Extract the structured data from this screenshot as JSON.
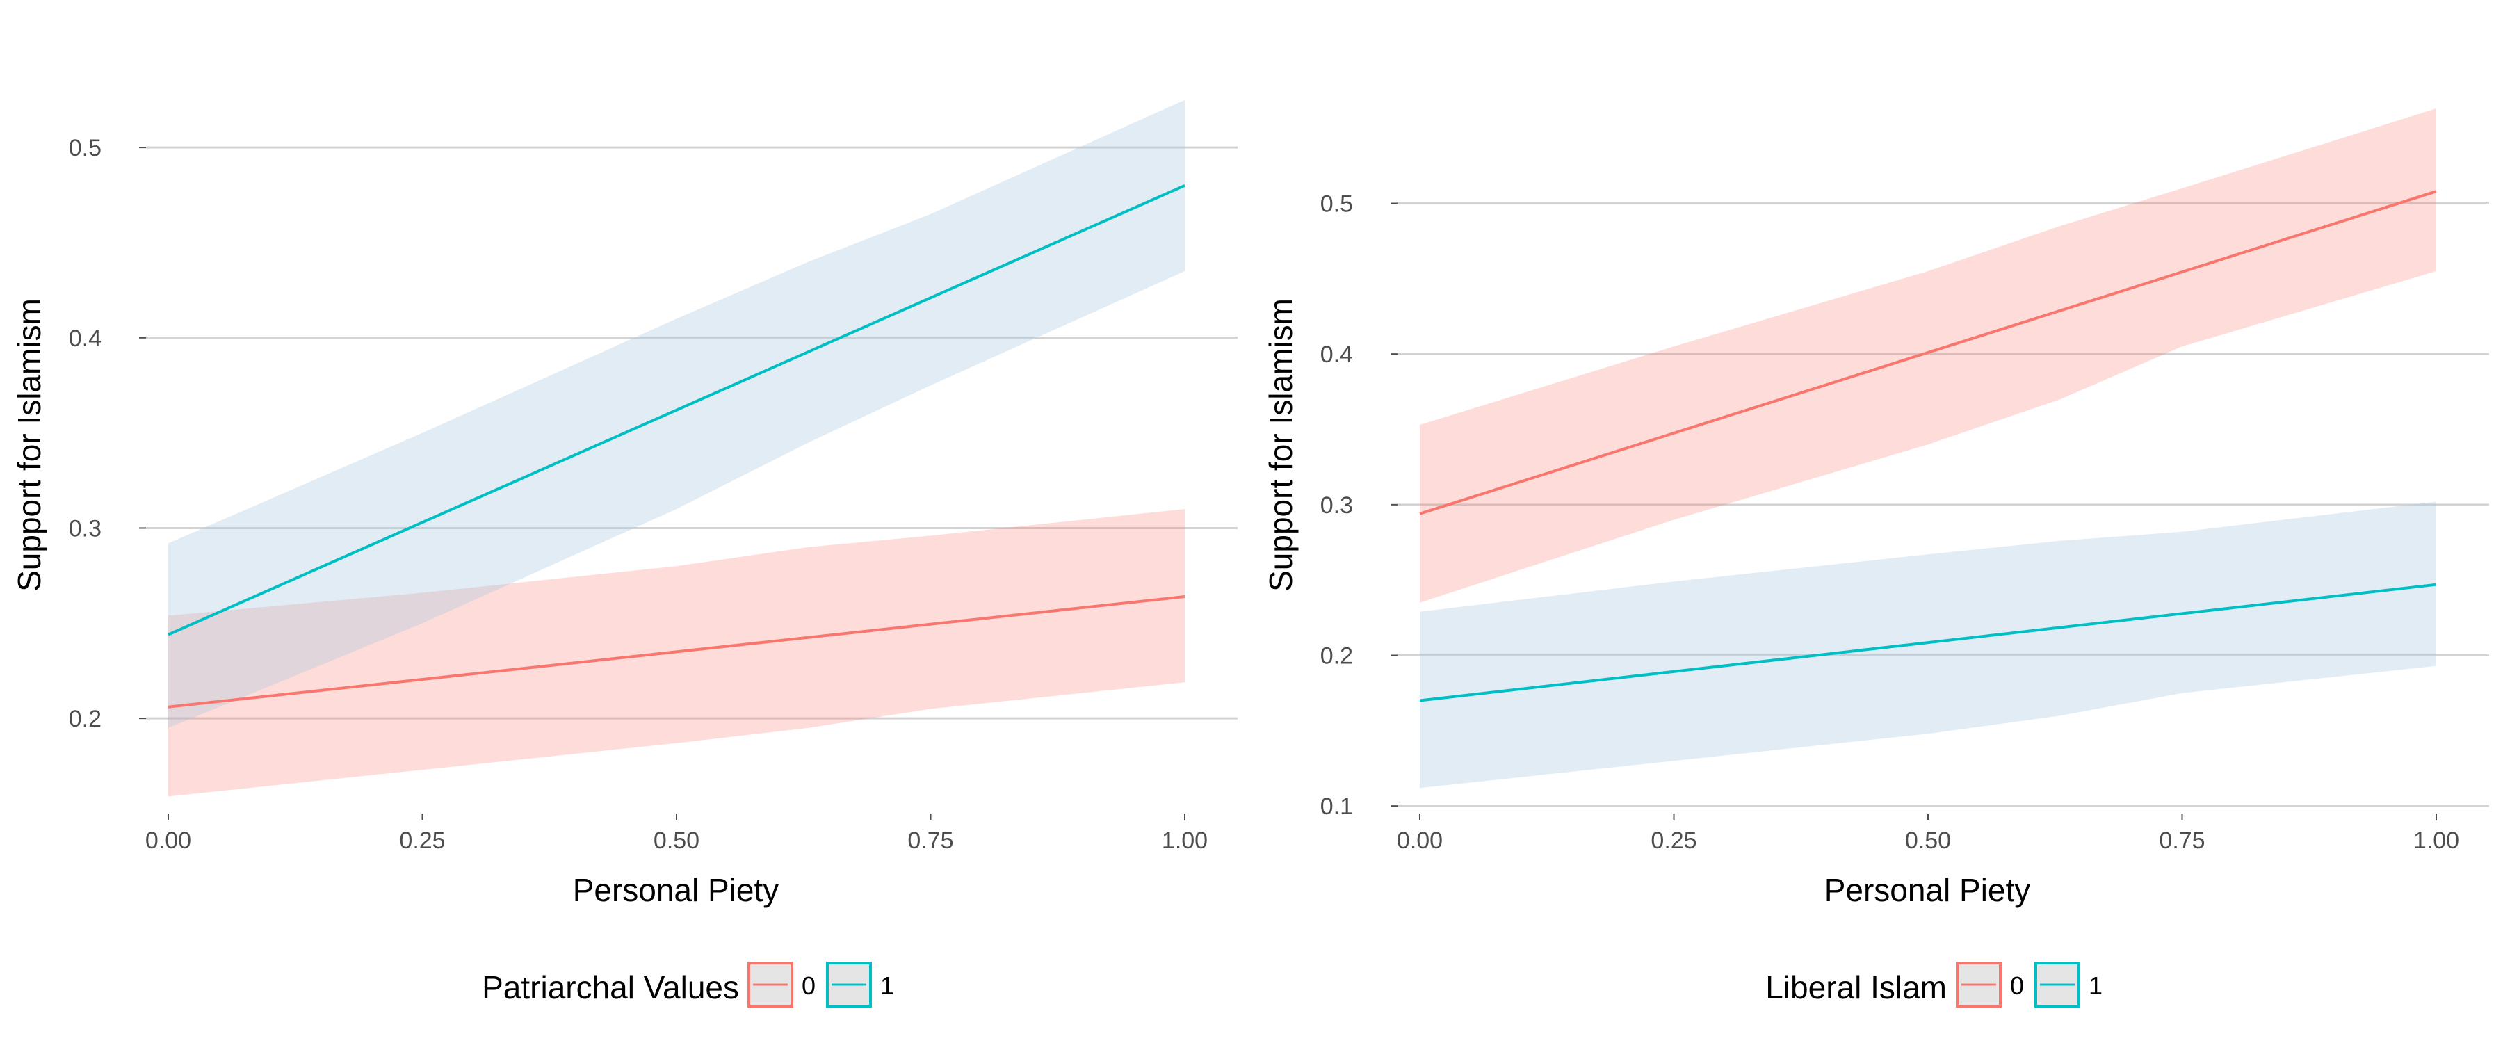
{
  "chart_data": [
    {
      "type": "line",
      "xlabel": "Personal Piety",
      "ylabel": "Support for Islamism",
      "xlim": [
        0,
        1
      ],
      "ylim": [
        0.15,
        0.53
      ],
      "xticks": [
        0,
        0.25,
        0.5,
        0.75,
        1
      ],
      "xtick_labels": [
        "0.00",
        "0.25",
        "0.50",
        "0.75",
        "1.00"
      ],
      "yticks": [
        0.2,
        0.3,
        0.4,
        0.5
      ],
      "ytick_labels": [
        "0.2",
        "0.3",
        "0.4",
        "0.5"
      ],
      "grid": "horizontal",
      "legend": {
        "title": "Patriarchal Values",
        "position": "bottom",
        "entries": [
          "0",
          "1"
        ]
      },
      "series": [
        {
          "name": "0",
          "color": "#F8766D",
          "x": [
            0,
            1
          ],
          "y": [
            0.206,
            0.264
          ],
          "band_x": [
            0,
            0.25,
            0.5,
            0.63,
            0.75,
            1
          ],
          "band_lower": [
            0.159,
            0.173,
            0.187,
            0.195,
            0.205,
            0.219
          ],
          "band_upper": [
            0.254,
            0.266,
            0.28,
            0.29,
            0.296,
            0.31
          ]
        },
        {
          "name": "1",
          "color": "#00BFC4",
          "x": [
            0,
            1
          ],
          "y": [
            0.244,
            0.48
          ],
          "band_x": [
            0,
            0.25,
            0.5,
            0.63,
            0.75,
            1
          ],
          "band_lower": [
            0.195,
            0.25,
            0.31,
            0.345,
            0.375,
            0.435
          ],
          "band_upper": [
            0.292,
            0.35,
            0.41,
            0.44,
            0.465,
            0.525
          ]
        }
      ]
    },
    {
      "type": "line",
      "xlabel": "Personal Piety",
      "ylabel": "Support for Islamism",
      "xlim": [
        0,
        1
      ],
      "ylim": [
        0.095,
        0.575
      ],
      "xticks": [
        0,
        0.25,
        0.5,
        0.75,
        1
      ],
      "xtick_labels": [
        "0.00",
        "0.25",
        "0.50",
        "0.75",
        "1.00"
      ],
      "yticks": [
        0.1,
        0.2,
        0.3,
        0.4,
        0.5
      ],
      "ytick_labels": [
        "0.1",
        "0.2",
        "0.3",
        "0.4",
        "0.5"
      ],
      "grid": "horizontal",
      "legend": {
        "title": "Liberal Islam",
        "position": "bottom",
        "entries": [
          "0",
          "1"
        ]
      },
      "series": [
        {
          "name": "0",
          "color": "#F8766D",
          "x": [
            0,
            1
          ],
          "y": [
            0.294,
            0.508
          ],
          "band_x": [
            0,
            0.25,
            0.5,
            0.63,
            0.75,
            1
          ],
          "band_lower": [
            0.235,
            0.29,
            0.34,
            0.37,
            0.405,
            0.455
          ],
          "band_upper": [
            0.353,
            0.405,
            0.455,
            0.485,
            0.51,
            0.563
          ]
        },
        {
          "name": "1",
          "color": "#00BFC4",
          "x": [
            0,
            1
          ],
          "y": [
            0.17,
            0.247
          ],
          "band_x": [
            0,
            0.25,
            0.5,
            0.63,
            0.75,
            1
          ],
          "band_lower": [
            0.112,
            0.13,
            0.148,
            0.16,
            0.175,
            0.193
          ],
          "band_upper": [
            0.229,
            0.249,
            0.267,
            0.276,
            0.282,
            0.302
          ]
        }
      ]
    }
  ],
  "colors": {
    "band_0": "#F8766D",
    "band_1": "#A6C8E0",
    "grid": "#D3D3D3",
    "legend_key_fill": "#E5E5E5"
  }
}
